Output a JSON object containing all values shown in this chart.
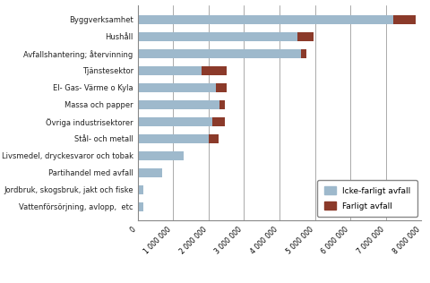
{
  "categories": [
    "Vattenförsörjning, avlopp,  etc",
    "Jordbruk, skogsbruk, jakt och fiske",
    "Partihandel med avfall",
    "Livsmedel, dryckesvaror och tobak",
    "Stål- och metall",
    "Övriga industrisektorer",
    "Massa och papper",
    "El- Gas- Värme o Kyla",
    "Tjänstesektor",
    "Avfallshantering; återvinning",
    "Hushåll",
    "Byggverksamhet"
  ],
  "icke_farligt": [
    150000,
    150000,
    700000,
    1300000,
    2000000,
    2100000,
    2300000,
    2200000,
    1800000,
    4600000,
    4500000,
    7200000
  ],
  "farligt": [
    0,
    0,
    0,
    0,
    280000,
    350000,
    150000,
    320000,
    700000,
    150000,
    450000,
    650000
  ],
  "color_icke": "#9EB9CC",
  "color_farligt": "#8B3A2A",
  "xlim": [
    0,
    8000000
  ],
  "xticks": [
    0,
    1000000,
    2000000,
    3000000,
    4000000,
    5000000,
    6000000,
    7000000,
    8000000
  ],
  "xtick_labels": [
    "0",
    "1 000 000",
    "2 000 000",
    "3 000 000",
    "4 000 000",
    "5 000 000",
    "6 000 000",
    "7 000 000",
    "8 000 000"
  ],
  "legend_icke": "Icke-farligt avfall",
  "legend_farligt": "Farligt avfall",
  "bg_color": "#FFFFFF",
  "bar_height": 0.5,
  "ytick_fontsize": 6.0,
  "xtick_fontsize": 5.5
}
